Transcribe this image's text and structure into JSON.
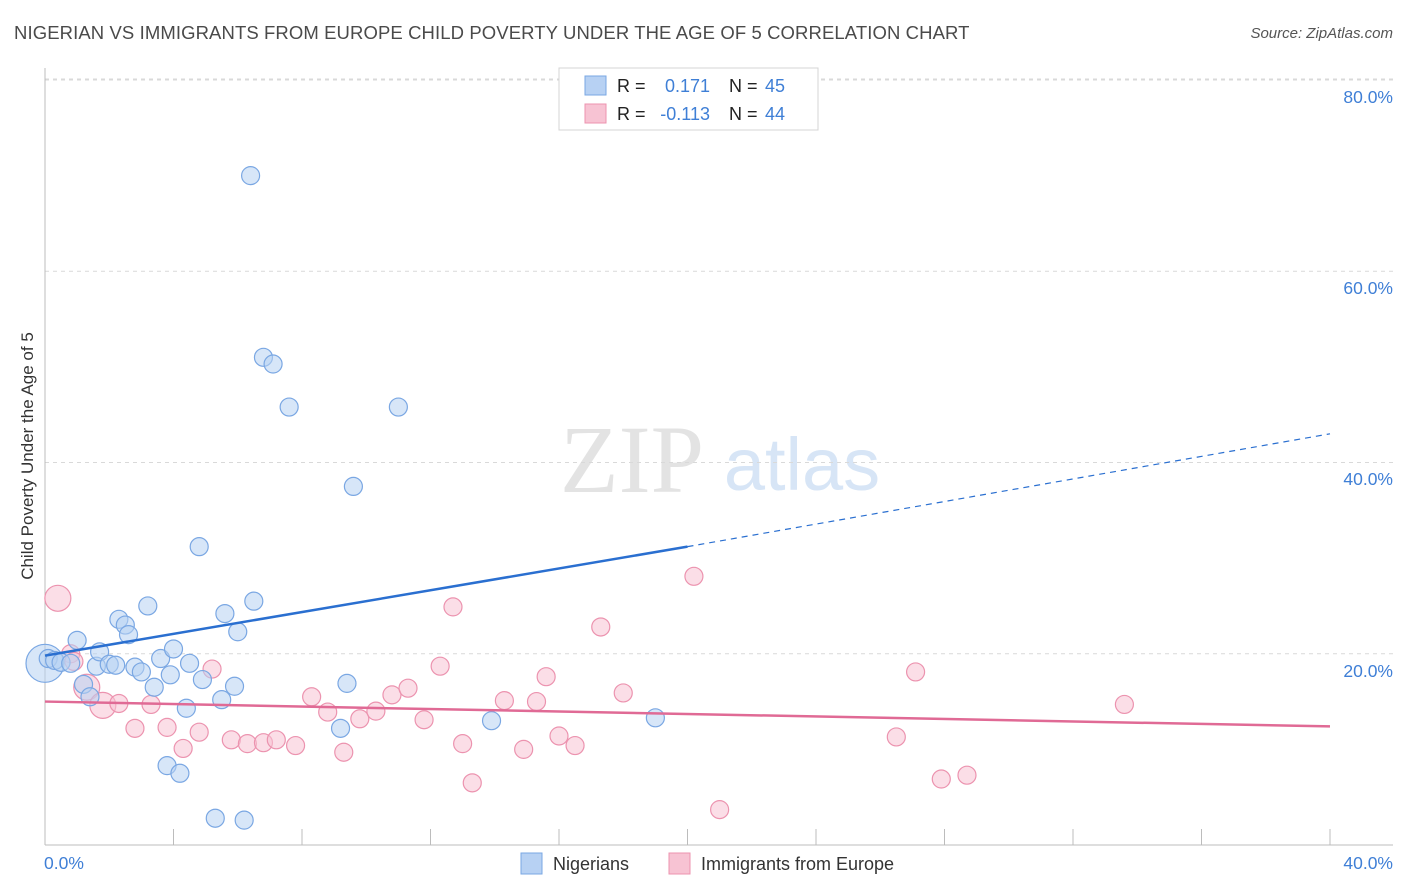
{
  "title": "NIGERIAN VS IMMIGRANTS FROM EUROPE CHILD POVERTY UNDER THE AGE OF 5 CORRELATION CHART",
  "source": "Source: ZipAtlas.com",
  "watermark": {
    "zip": "ZIP",
    "atlas": "atlas"
  },
  "legend_top": {
    "row1": {
      "r_label": "R =",
      "r_value": "0.171",
      "n_label": "N =",
      "n_value": "45"
    },
    "row2": {
      "r_label": "R =",
      "r_value": "-0.113",
      "n_label": "N =",
      "n_value": "44"
    }
  },
  "legend_bottom": {
    "series1": "Nigerians",
    "series2": "Immigrants from Europe"
  },
  "colors": {
    "blue_fill": "#b7d1f3",
    "blue_stroke": "#7aa7e3",
    "blue_line": "#2a6fd0",
    "pink_fill": "#f7c3d3",
    "pink_stroke": "#ec93af",
    "pink_line": "#e06a95",
    "tick_text": "#3f7fd6",
    "grid": "#d9d9d9"
  },
  "chart_data": {
    "type": "scatter",
    "title": "NIGERIAN VS IMMIGRANTS FROM EUROPE CHILD POVERTY UNDER THE AGE OF 5 CORRELATION CHART",
    "xlabel": "",
    "ylabel": "Child Poverty Under the Age of 5",
    "xlim": [
      0,
      40
    ],
    "ylim": [
      0,
      80
    ],
    "x_tick_labels": [
      "0.0%",
      "40.0%"
    ],
    "y_tick_labels": [
      "20.0%",
      "40.0%",
      "60.0%",
      "80.0%"
    ],
    "y_ticks": [
      20,
      40,
      60,
      80
    ],
    "grid": true,
    "legend_position": "top-center",
    "series": [
      {
        "name": "Nigerians",
        "R": 0.171,
        "N": 45,
        "trend": {
          "x0": 0,
          "y0": 19.8,
          "x1": 20,
          "y1": 31.2,
          "dashed_to_x": 40,
          "dashed_to_y": 43.0
        },
        "points": [
          {
            "x": 0.0,
            "y": 19.0,
            "s": 3
          },
          {
            "x": 0.1,
            "y": 19.5,
            "s": 1
          },
          {
            "x": 0.3,
            "y": 19.3,
            "s": 1
          },
          {
            "x": 0.5,
            "y": 19.1,
            "s": 1
          },
          {
            "x": 0.8,
            "y": 19.0,
            "s": 1
          },
          {
            "x": 1.0,
            "y": 21.4,
            "s": 1
          },
          {
            "x": 1.2,
            "y": 16.8,
            "s": 1
          },
          {
            "x": 1.4,
            "y": 15.5,
            "s": 1
          },
          {
            "x": 1.6,
            "y": 18.7,
            "s": 1
          },
          {
            "x": 1.7,
            "y": 20.2,
            "s": 1
          },
          {
            "x": 2.0,
            "y": 18.9,
            "s": 1
          },
          {
            "x": 2.2,
            "y": 18.8,
            "s": 1
          },
          {
            "x": 2.3,
            "y": 23.6,
            "s": 1
          },
          {
            "x": 2.5,
            "y": 23.0,
            "s": 1
          },
          {
            "x": 2.6,
            "y": 22.0,
            "s": 1
          },
          {
            "x": 2.8,
            "y": 18.6,
            "s": 1
          },
          {
            "x": 3.0,
            "y": 18.1,
            "s": 1
          },
          {
            "x": 3.2,
            "y": 25.0,
            "s": 1
          },
          {
            "x": 3.4,
            "y": 16.5,
            "s": 1
          },
          {
            "x": 3.6,
            "y": 19.5,
            "s": 1
          },
          {
            "x": 3.8,
            "y": 8.3,
            "s": 1
          },
          {
            "x": 3.9,
            "y": 17.8,
            "s": 1
          },
          {
            "x": 4.0,
            "y": 20.5,
            "s": 1
          },
          {
            "x": 4.2,
            "y": 7.5,
            "s": 1
          },
          {
            "x": 4.4,
            "y": 14.3,
            "s": 1
          },
          {
            "x": 4.5,
            "y": 19.0,
            "s": 1
          },
          {
            "x": 4.8,
            "y": 31.2,
            "s": 1
          },
          {
            "x": 4.9,
            "y": 17.3,
            "s": 1
          },
          {
            "x": 5.3,
            "y": 2.8,
            "s": 1
          },
          {
            "x": 5.5,
            "y": 15.2,
            "s": 1
          },
          {
            "x": 5.6,
            "y": 24.2,
            "s": 1
          },
          {
            "x": 6.0,
            "y": 22.3,
            "s": 1
          },
          {
            "x": 5.9,
            "y": 16.6,
            "s": 1
          },
          {
            "x": 6.2,
            "y": 2.6,
            "s": 1
          },
          {
            "x": 6.4,
            "y": 70.0,
            "s": 1
          },
          {
            "x": 6.5,
            "y": 25.5,
            "s": 1
          },
          {
            "x": 6.8,
            "y": 51.0,
            "s": 1
          },
          {
            "x": 7.1,
            "y": 50.3,
            "s": 1
          },
          {
            "x": 7.6,
            "y": 45.8,
            "s": 1
          },
          {
            "x": 9.2,
            "y": 12.2,
            "s": 1
          },
          {
            "x": 9.4,
            "y": 16.9,
            "s": 1
          },
          {
            "x": 9.6,
            "y": 37.5,
            "s": 1
          },
          {
            "x": 11.0,
            "y": 45.8,
            "s": 1
          },
          {
            "x": 13.9,
            "y": 13.0,
            "s": 1
          },
          {
            "x": 19.0,
            "y": 13.3,
            "s": 1
          }
        ]
      },
      {
        "name": "Immigrants from Europe",
        "R": -0.113,
        "N": 44,
        "trend": {
          "x0": 0,
          "y0": 15.0,
          "x1": 40,
          "y1": 12.4
        },
        "points": [
          {
            "x": 0.4,
            "y": 25.8,
            "s": 2
          },
          {
            "x": 0.8,
            "y": 20.0,
            "s": 1
          },
          {
            "x": 0.9,
            "y": 19.2,
            "s": 1
          },
          {
            "x": 1.3,
            "y": 16.5,
            "s": 2
          },
          {
            "x": 1.8,
            "y": 14.6,
            "s": 2
          },
          {
            "x": 2.3,
            "y": 14.8,
            "s": 1
          },
          {
            "x": 2.8,
            "y": 12.2,
            "s": 1
          },
          {
            "x": 3.3,
            "y": 14.7,
            "s": 1
          },
          {
            "x": 3.8,
            "y": 12.3,
            "s": 1
          },
          {
            "x": 4.3,
            "y": 10.1,
            "s": 1
          },
          {
            "x": 4.8,
            "y": 11.8,
            "s": 1
          },
          {
            "x": 5.2,
            "y": 18.4,
            "s": 1
          },
          {
            "x": 5.8,
            "y": 11.0,
            "s": 1
          },
          {
            "x": 6.3,
            "y": 10.6,
            "s": 1
          },
          {
            "x": 6.8,
            "y": 10.7,
            "s": 1
          },
          {
            "x": 7.2,
            "y": 11.0,
            "s": 1
          },
          {
            "x": 7.8,
            "y": 10.4,
            "s": 1
          },
          {
            "x": 8.3,
            "y": 15.5,
            "s": 1
          },
          {
            "x": 8.8,
            "y": 13.9,
            "s": 1
          },
          {
            "x": 9.3,
            "y": 9.7,
            "s": 1
          },
          {
            "x": 9.8,
            "y": 13.2,
            "s": 1
          },
          {
            "x": 10.3,
            "y": 14.0,
            "s": 1
          },
          {
            "x": 10.8,
            "y": 15.7,
            "s": 1
          },
          {
            "x": 11.3,
            "y": 16.4,
            "s": 1
          },
          {
            "x": 11.8,
            "y": 13.1,
            "s": 1
          },
          {
            "x": 12.3,
            "y": 18.7,
            "s": 1
          },
          {
            "x": 12.7,
            "y": 24.9,
            "s": 1
          },
          {
            "x": 13.0,
            "y": 10.6,
            "s": 1
          },
          {
            "x": 13.3,
            "y": 6.5,
            "s": 1
          },
          {
            "x": 14.3,
            "y": 15.1,
            "s": 1
          },
          {
            "x": 14.9,
            "y": 10.0,
            "s": 1
          },
          {
            "x": 15.3,
            "y": 15.0,
            "s": 1
          },
          {
            "x": 15.6,
            "y": 17.6,
            "s": 1
          },
          {
            "x": 16.0,
            "y": 11.4,
            "s": 1
          },
          {
            "x": 16.5,
            "y": 10.4,
            "s": 1
          },
          {
            "x": 17.3,
            "y": 22.8,
            "s": 1
          },
          {
            "x": 18.0,
            "y": 15.9,
            "s": 1
          },
          {
            "x": 20.2,
            "y": 28.1,
            "s": 1
          },
          {
            "x": 21.0,
            "y": 3.7,
            "s": 1
          },
          {
            "x": 26.5,
            "y": 11.3,
            "s": 1
          },
          {
            "x": 27.1,
            "y": 18.1,
            "s": 1
          },
          {
            "x": 27.9,
            "y": 6.9,
            "s": 1
          },
          {
            "x": 28.7,
            "y": 7.3,
            "s": 1
          },
          {
            "x": 33.6,
            "y": 14.7,
            "s": 1
          }
        ]
      }
    ]
  }
}
